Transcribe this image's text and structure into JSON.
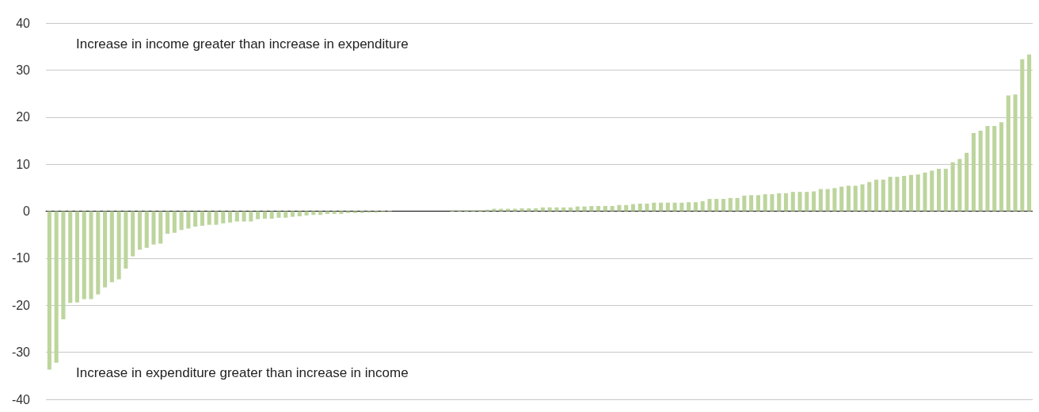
{
  "chart_data": {
    "type": "bar",
    "color": "#bdd59d",
    "categories": [
      null,
      null,
      null,
      null,
      null,
      null,
      null,
      null,
      null,
      null,
      null,
      null,
      null,
      null,
      null,
      null,
      null,
      null,
      null,
      null,
      null,
      null,
      null,
      null,
      null,
      null,
      null,
      null,
      null,
      null,
      null,
      null,
      null,
      null,
      null,
      null,
      null,
      null,
      null,
      null,
      null,
      null,
      null,
      null,
      null,
      null,
      null,
      null,
      null,
      null,
      null,
      null,
      null,
      null,
      null,
      null,
      null,
      null,
      null,
      null,
      null,
      null,
      null,
      null,
      null,
      null,
      null,
      null,
      null,
      null,
      null,
      null,
      null,
      null,
      null,
      null,
      null,
      null,
      null,
      null,
      null,
      null,
      null,
      null,
      null,
      null,
      null,
      null,
      null,
      null,
      null,
      null,
      null,
      null,
      null,
      null,
      null,
      null,
      null,
      null,
      null,
      null,
      null,
      null,
      null,
      null,
      null,
      null,
      null,
      null,
      null,
      null,
      null,
      null,
      null,
      null,
      null,
      null,
      null,
      null,
      null,
      null,
      null,
      null,
      null,
      null,
      null,
      null,
      null,
      null,
      null,
      null,
      null,
      null,
      null,
      null,
      null,
      null,
      null,
      null,
      null,
      null
    ],
    "values": [
      -33.7,
      -32.2,
      -23.0,
      -19.5,
      -19.4,
      -18.7,
      -18.7,
      -17.7,
      -16.2,
      -15.1,
      -14.5,
      -12.2,
      -9.6,
      -8.2,
      -7.8,
      -7.1,
      -6.9,
      -4.8,
      -4.6,
      -4.0,
      -3.7,
      -3.3,
      -3.1,
      -2.9,
      -2.9,
      -2.6,
      -2.4,
      -2.2,
      -2.2,
      -2.2,
      -1.7,
      -1.6,
      -1.6,
      -1.4,
      -1.4,
      -1.2,
      -1.1,
      -0.9,
      -0.8,
      -0.8,
      -0.6,
      -0.6,
      -0.6,
      -0.4,
      -0.4,
      -0.4,
      -0.3,
      -0.3,
      -0.2,
      -0.2,
      0,
      0,
      0,
      0,
      0,
      0,
      0,
      0,
      0.2,
      0.2,
      0.2,
      0.2,
      0.2,
      0.3,
      0.5,
      0.5,
      0.5,
      0.5,
      0.6,
      0.6,
      0.6,
      0.8,
      0.8,
      0.8,
      0.8,
      0.8,
      1.0,
      1.0,
      1.1,
      1.1,
      1.1,
      1.1,
      1.3,
      1.3,
      1.5,
      1.6,
      1.6,
      1.8,
      1.8,
      1.8,
      1.8,
      1.8,
      1.9,
      1.9,
      2.1,
      2.6,
      2.6,
      2.6,
      2.8,
      2.8,
      3.3,
      3.4,
      3.4,
      3.6,
      3.6,
      3.8,
      3.8,
      4.1,
      4.1,
      4.1,
      4.2,
      4.7,
      4.7,
      4.9,
      5.2,
      5.4,
      5.4,
      5.7,
      6.2,
      6.7,
      6.7,
      7.3,
      7.3,
      7.5,
      7.7,
      7.8,
      8.2,
      8.6,
      9.0,
      9.0,
      10.4,
      11.1,
      12.4,
      16.6,
      17.1,
      18.1,
      18.1,
      18.9,
      24.6,
      24.8,
      32.3,
      33.3
    ],
    "ylim": [
      -40,
      40
    ],
    "yticks": [
      -40,
      -30,
      -20,
      -10,
      0,
      10,
      20,
      30,
      40
    ],
    "grid": "y",
    "tick_labels": "y",
    "annotations": [
      "Increase in income greater than increase in expenditure",
      "Increase in expenditure greater than increase in income"
    ]
  }
}
